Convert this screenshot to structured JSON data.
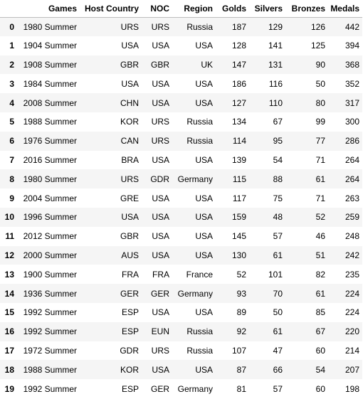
{
  "table": {
    "columns": [
      "",
      "Games",
      "Host Country",
      "NOC",
      "Region",
      "Golds",
      "Silvers",
      "Bronzes",
      "Medals"
    ],
    "rows": [
      {
        "index": "0",
        "games": "1980 Summer",
        "host": "URS",
        "noc": "URS",
        "region": "Russia",
        "golds": "187",
        "silvers": "129",
        "bronzes": "126",
        "medals": "442"
      },
      {
        "index": "1",
        "games": "1904 Summer",
        "host": "USA",
        "noc": "USA",
        "region": "USA",
        "golds": "128",
        "silvers": "141",
        "bronzes": "125",
        "medals": "394"
      },
      {
        "index": "2",
        "games": "1908 Summer",
        "host": "GBR",
        "noc": "GBR",
        "region": "UK",
        "golds": "147",
        "silvers": "131",
        "bronzes": "90",
        "medals": "368"
      },
      {
        "index": "3",
        "games": "1984 Summer",
        "host": "USA",
        "noc": "USA",
        "region": "USA",
        "golds": "186",
        "silvers": "116",
        "bronzes": "50",
        "medals": "352"
      },
      {
        "index": "4",
        "games": "2008 Summer",
        "host": "CHN",
        "noc": "USA",
        "region": "USA",
        "golds": "127",
        "silvers": "110",
        "bronzes": "80",
        "medals": "317"
      },
      {
        "index": "5",
        "games": "1988 Summer",
        "host": "KOR",
        "noc": "URS",
        "region": "Russia",
        "golds": "134",
        "silvers": "67",
        "bronzes": "99",
        "medals": "300"
      },
      {
        "index": "6",
        "games": "1976 Summer",
        "host": "CAN",
        "noc": "URS",
        "region": "Russia",
        "golds": "114",
        "silvers": "95",
        "bronzes": "77",
        "medals": "286"
      },
      {
        "index": "7",
        "games": "2016 Summer",
        "host": "BRA",
        "noc": "USA",
        "region": "USA",
        "golds": "139",
        "silvers": "54",
        "bronzes": "71",
        "medals": "264"
      },
      {
        "index": "8",
        "games": "1980 Summer",
        "host": "URS",
        "noc": "GDR",
        "region": "Germany",
        "golds": "115",
        "silvers": "88",
        "bronzes": "61",
        "medals": "264"
      },
      {
        "index": "9",
        "games": "2004 Summer",
        "host": "GRE",
        "noc": "USA",
        "region": "USA",
        "golds": "117",
        "silvers": "75",
        "bronzes": "71",
        "medals": "263"
      },
      {
        "index": "10",
        "games": "1996 Summer",
        "host": "USA",
        "noc": "USA",
        "region": "USA",
        "golds": "159",
        "silvers": "48",
        "bronzes": "52",
        "medals": "259"
      },
      {
        "index": "11",
        "games": "2012 Summer",
        "host": "GBR",
        "noc": "USA",
        "region": "USA",
        "golds": "145",
        "silvers": "57",
        "bronzes": "46",
        "medals": "248"
      },
      {
        "index": "12",
        "games": "2000 Summer",
        "host": "AUS",
        "noc": "USA",
        "region": "USA",
        "golds": "130",
        "silvers": "61",
        "bronzes": "51",
        "medals": "242"
      },
      {
        "index": "13",
        "games": "1900 Summer",
        "host": "FRA",
        "noc": "FRA",
        "region": "France",
        "golds": "52",
        "silvers": "101",
        "bronzes": "82",
        "medals": "235"
      },
      {
        "index": "14",
        "games": "1936 Summer",
        "host": "GER",
        "noc": "GER",
        "region": "Germany",
        "golds": "93",
        "silvers": "70",
        "bronzes": "61",
        "medals": "224"
      },
      {
        "index": "15",
        "games": "1992 Summer",
        "host": "ESP",
        "noc": "USA",
        "region": "USA",
        "golds": "89",
        "silvers": "50",
        "bronzes": "85",
        "medals": "224"
      },
      {
        "index": "16",
        "games": "1992 Summer",
        "host": "ESP",
        "noc": "EUN",
        "region": "Russia",
        "golds": "92",
        "silvers": "61",
        "bronzes": "67",
        "medals": "220"
      },
      {
        "index": "17",
        "games": "1972 Summer",
        "host": "GDR",
        "noc": "URS",
        "region": "Russia",
        "golds": "107",
        "silvers": "47",
        "bronzes": "60",
        "medals": "214"
      },
      {
        "index": "18",
        "games": "1988 Summer",
        "host": "KOR",
        "noc": "USA",
        "region": "USA",
        "golds": "87",
        "silvers": "66",
        "bronzes": "54",
        "medals": "207"
      },
      {
        "index": "19",
        "games": "1992 Summer",
        "host": "ESP",
        "noc": "GER",
        "region": "Germany",
        "golds": "81",
        "silvers": "57",
        "bronzes": "60",
        "medals": "198"
      }
    ]
  }
}
